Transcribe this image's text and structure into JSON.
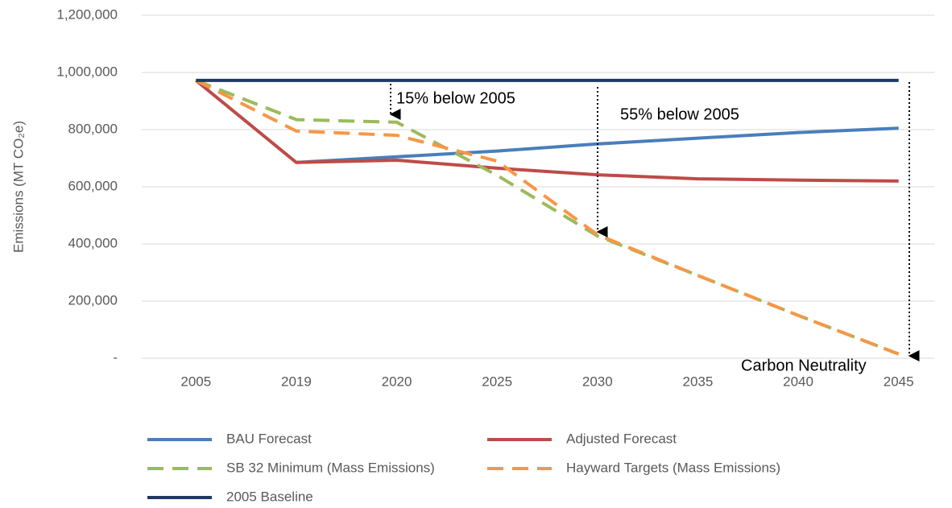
{
  "chart_data": {
    "type": "line",
    "y_label": "Emissions (MT CO₂e)",
    "categories": [
      "2005",
      "2019",
      "2020",
      "2025",
      "2030",
      "2035",
      "2040",
      "2045"
    ],
    "series": [
      {
        "name": "BAU Forecast",
        "color": "#4a7ebb",
        "dashed": false,
        "values": [
          null,
          685000,
          705000,
          725000,
          750000,
          770000,
          790000,
          805000
        ]
      },
      {
        "name": "Adjusted Forecast",
        "color": "#be4b48",
        "dashed": false,
        "values": [
          972000,
          685000,
          693000,
          665000,
          642000,
          628000,
          623000,
          620000
        ]
      },
      {
        "name": "SB 32 Minimum (Mass Emissions)",
        "color": "#9bbb59",
        "dashed": true,
        "values": [
          972000,
          835000,
          826000,
          640000,
          428000,
          290000,
          150000,
          15000
        ]
      },
      {
        "name": "Hayward Targets (Mass Emissions)",
        "color": "#f79646",
        "dashed": true,
        "values": [
          972000,
          795000,
          780000,
          690000,
          432000,
          290000,
          150000,
          15000
        ]
      },
      {
        "name": "2005 Baseline",
        "color": "#1f3864",
        "dashed": false,
        "values": [
          972000,
          972000,
          972000,
          972000,
          972000,
          972000,
          972000,
          972000
        ]
      }
    ],
    "annotations": [
      "15% below 2005",
      "55% below 2005",
      "Carbon Neutrality"
    ],
    "ylim": [
      0,
      1200000
    ],
    "yticks": [
      {
        "value": 0,
        "label": "-"
      },
      {
        "value": 200000,
        "label": "200,000"
      },
      {
        "value": 400000,
        "label": "400,000"
      },
      {
        "value": 600000,
        "label": "600,000"
      },
      {
        "value": 800000,
        "label": "800,000"
      },
      {
        "value": 1000000,
        "label": "1,000,000"
      },
      {
        "value": 1200000,
        "label": "1,200,000"
      }
    ],
    "grid": true,
    "legend": "bottom"
  }
}
